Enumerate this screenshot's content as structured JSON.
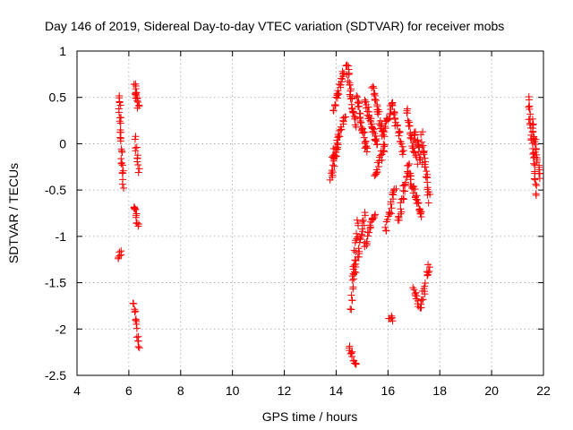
{
  "chart_data": {
    "type": "scatter",
    "title": "Day 146 of 2019, Sidereal Day-to-day VTEC variation (SDTVAR) for receiver mobs",
    "xlabel": "GPS time / hours",
    "ylabel": "SDTVAR / TECUs",
    "xlim": [
      4,
      22
    ],
    "ylim": [
      -2.5,
      1
    ],
    "xticks": [
      4,
      6,
      8,
      10,
      12,
      14,
      16,
      18,
      20,
      22
    ],
    "yticks": [
      -2.5,
      -2,
      -1.5,
      -1,
      -0.5,
      0,
      0.5,
      1
    ],
    "ytick_labels": [
      "-2.5",
      "-2",
      "-1.5",
      "-1",
      "-0.5",
      "0",
      "0.5",
      "1"
    ],
    "grid": true,
    "marker": "+",
    "color": "#ff0000",
    "segments": [
      {
        "x": [
          5.6,
          5.72
        ],
        "y": [
          -1.23,
          -1.18
        ],
        "n": 6
      },
      {
        "x": [
          5.62,
          5.78
        ],
        "y": [
          0.55,
          -0.45
        ],
        "n": 30
      },
      {
        "x": [
          6.22,
          6.38
        ],
        "y": [
          0.62,
          0.4
        ],
        "n": 18
      },
      {
        "x": [
          6.25,
          6.4
        ],
        "y": [
          0.05,
          -0.27
        ],
        "n": 12
      },
      {
        "x": [
          6.2,
          6.38
        ],
        "y": [
          -0.65,
          -0.9
        ],
        "n": 14
      },
      {
        "x": [
          6.18,
          6.38
        ],
        "y": [
          -1.72,
          -2.22
        ],
        "n": 16
      },
      {
        "x": [
          13.8,
          14.1
        ],
        "y": [
          -0.38,
          0.05
        ],
        "n": 20
      },
      {
        "x": [
          13.85,
          14.35
        ],
        "y": [
          -0.15,
          0.3
        ],
        "n": 24
      },
      {
        "x": [
          13.9,
          14.3
        ],
        "y": [
          0.35,
          0.8
        ],
        "n": 24
      },
      {
        "x": [
          14.4,
          14.75
        ],
        "y": [
          0.88,
          0.2
        ],
        "n": 30
      },
      {
        "x": [
          14.5,
          14.8
        ],
        "y": [
          -2.2,
          -2.4
        ],
        "n": 14
      },
      {
        "x": [
          14.55,
          14.85
        ],
        "y": [
          -1.8,
          -0.8
        ],
        "n": 24
      },
      {
        "x": [
          14.7,
          15.1
        ],
        "y": [
          -1.45,
          -0.75
        ],
        "n": 24
      },
      {
        "x": [
          14.8,
          15.2
        ],
        "y": [
          0.5,
          -0.1
        ],
        "n": 30
      },
      {
        "x": [
          15.1,
          15.6
        ],
        "y": [
          0.45,
          0.0
        ],
        "n": 30
      },
      {
        "x": [
          15.1,
          15.5
        ],
        "y": [
          -1.1,
          -0.75
        ],
        "n": 20
      },
      {
        "x": [
          15.4,
          15.8
        ],
        "y": [
          0.62,
          0.1
        ],
        "n": 28
      },
      {
        "x": [
          15.5,
          15.9
        ],
        "y": [
          -0.35,
          0.0
        ],
        "n": 20
      },
      {
        "x": [
          15.8,
          16.2
        ],
        "y": [
          0.1,
          0.45
        ],
        "n": 20
      },
      {
        "x": [
          15.9,
          16.3
        ],
        "y": [
          -0.95,
          -0.45
        ],
        "n": 20
      },
      {
        "x": [
          16.0,
          16.2
        ],
        "y": [
          -1.85,
          -1.92
        ],
        "n": 6
      },
      {
        "x": [
          16.2,
          16.6
        ],
        "y": [
          0.35,
          -0.1
        ],
        "n": 20
      },
      {
        "x": [
          16.4,
          16.8
        ],
        "y": [
          -0.85,
          -0.2
        ],
        "n": 24
      },
      {
        "x": [
          16.7,
          17.1
        ],
        "y": [
          0.38,
          -0.2
        ],
        "n": 24
      },
      {
        "x": [
          16.8,
          17.3
        ],
        "y": [
          -0.3,
          -0.8
        ],
        "n": 30
      },
      {
        "x": [
          17.0,
          17.3
        ],
        "y": [
          0.15,
          -0.2
        ],
        "n": 18
      },
      {
        "x": [
          17.0,
          17.3
        ],
        "y": [
          -1.58,
          -1.78
        ],
        "n": 14
      },
      {
        "x": [
          17.3,
          17.6
        ],
        "y": [
          -1.7,
          -1.3
        ],
        "n": 16
      },
      {
        "x": [
          17.3,
          17.6
        ],
        "y": [
          0.1,
          -0.6
        ],
        "n": 26
      },
      {
        "x": [
          21.4,
          21.75
        ],
        "y": [
          0.52,
          -0.55
        ],
        "n": 30
      },
      {
        "x": [
          21.55,
          21.85
        ],
        "y": [
          0.25,
          -0.35
        ],
        "n": 26
      }
    ]
  }
}
